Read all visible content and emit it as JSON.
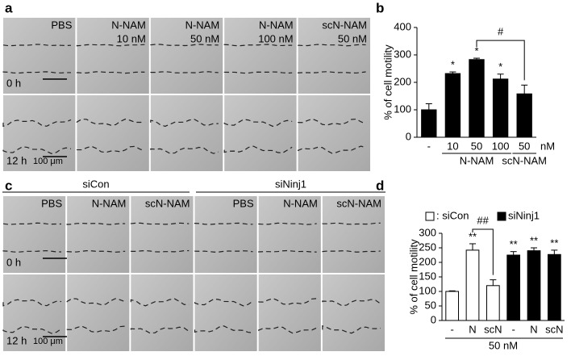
{
  "panel_a": {
    "label": "a",
    "columns": [
      [
        "PBS"
      ],
      [
        "N-NAM",
        "10 nM"
      ],
      [
        "N-NAM",
        "50 nM"
      ],
      [
        "N-NAM",
        "100 nM"
      ],
      [
        "scN-NAM",
        "50 nM"
      ]
    ],
    "rows": [
      "0 h",
      "12 h"
    ],
    "scale_bar": "100 μm"
  },
  "panel_c": {
    "label": "c",
    "groups": [
      "siCon",
      "siNinj1"
    ],
    "columns": [
      "PBS",
      "N-NAM",
      "scN-NAM",
      "PBS",
      "N-NAM",
      "scN-NAM"
    ],
    "rows": [
      "0 h",
      "12 h"
    ],
    "scale_bar": "100 μm"
  },
  "chart_data": [
    {
      "type": "bar",
      "panel_label": "b",
      "ylabel": "% of cell motility",
      "categories": [
        "-",
        "10",
        "50",
        "100",
        "50"
      ],
      "values": [
        100,
        232,
        283,
        212,
        158
      ],
      "errors": [
        22,
        6,
        5,
        18,
        32
      ],
      "color": "#000000",
      "ylim": [
        0,
        400
      ],
      "yticks": [
        0,
        100,
        200,
        300,
        400
      ],
      "unit": "nM",
      "groups": [
        "N-NAM",
        "scN-NAM"
      ],
      "significance": [
        null,
        "*",
        "*",
        "*",
        null
      ],
      "bracket_label": "#"
    },
    {
      "type": "bar",
      "panel_label": "d",
      "ylabel": "% of cell motility",
      "categories": [
        "-",
        "N",
        "scN",
        "-",
        "N",
        "scN"
      ],
      "series": [
        {
          "name": ": siCon",
          "color": "#ffffff",
          "values": [
            100,
            242,
            120,
            null,
            null,
            null
          ],
          "errors": [
            2,
            22,
            20,
            null,
            null,
            null
          ]
        },
        {
          "name": "siNinj1",
          "color": "#000000",
          "values": [
            null,
            null,
            null,
            225,
            240,
            227
          ],
          "errors": [
            null,
            null,
            null,
            12,
            10,
            15
          ]
        }
      ],
      "ylim": [
        0,
        300
      ],
      "yticks": [
        0,
        50,
        100,
        150,
        200,
        250,
        300
      ],
      "xlabel": "50 nM",
      "significance": [
        null,
        "**",
        null,
        "**",
        "**",
        "**"
      ],
      "bracket_label": "##"
    }
  ]
}
